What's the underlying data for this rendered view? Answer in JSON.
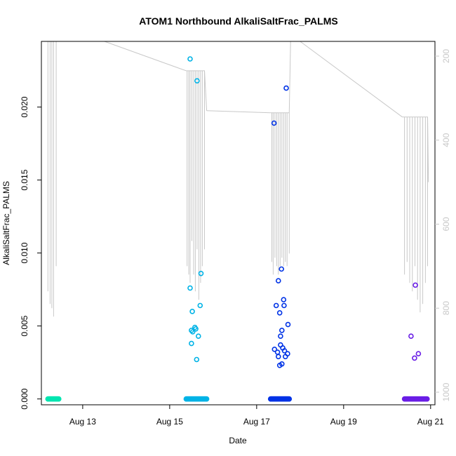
{
  "chart_data": {
    "type": "scatter",
    "title": "ATOM1 Northbound AlkaliSaltFrac_PALMS",
    "xlabel": "Date",
    "ylabel": "AlkaliSaltFrac_PALMS",
    "x_unit": "day of August 2016",
    "xlim": [
      12.05,
      21.1
    ],
    "ylim": [
      -0.0004,
      0.0245
    ],
    "x_ticks": [
      {
        "value": 13,
        "label": "Aug 13"
      },
      {
        "value": 15,
        "label": "Aug 15"
      },
      {
        "value": 17,
        "label": "Aug 17"
      },
      {
        "value": 19,
        "label": "Aug 19"
      },
      {
        "value": 21,
        "label": "Aug 21"
      }
    ],
    "y_ticks": [
      {
        "value": 0.0,
        "label": "0.000"
      },
      {
        "value": 0.005,
        "label": "0.005"
      },
      {
        "value": 0.01,
        "label": "0.010"
      },
      {
        "value": 0.015,
        "label": "0.015"
      },
      {
        "value": 0.02,
        "label": "0.020"
      }
    ],
    "right_axis": {
      "label": "",
      "color": "#c8c8c8",
      "reversed": true,
      "lim": [
        1030,
        165
      ],
      "ticks": [
        {
          "value": 200,
          "label": "200"
        },
        {
          "value": 400,
          "label": "400"
        },
        {
          "value": 600,
          "label": "600"
        },
        {
          "value": 800,
          "label": "800"
        },
        {
          "value": 1000,
          "label": "1000"
        }
      ]
    },
    "grid": false,
    "legend": "none",
    "series": [
      {
        "color": "#00e5b0",
        "x_range": [
          12.2,
          12.45
        ],
        "zero_count": 40,
        "points": []
      },
      {
        "color": "#00b3e6",
        "x_range": [
          15.38,
          15.85
        ],
        "zero_count": 70,
        "points": [
          {
            "x": 15.47,
            "y": 0.0233
          },
          {
            "x": 15.63,
            "y": 0.0218
          },
          {
            "x": 15.72,
            "y": 0.0086
          },
          {
            "x": 15.47,
            "y": 0.0076
          },
          {
            "x": 15.52,
            "y": 0.006
          },
          {
            "x": 15.7,
            "y": 0.0064
          },
          {
            "x": 15.58,
            "y": 0.0049
          },
          {
            "x": 15.6,
            "y": 0.0048
          },
          {
            "x": 15.5,
            "y": 0.0047
          },
          {
            "x": 15.53,
            "y": 0.0046
          },
          {
            "x": 15.66,
            "y": 0.0043
          },
          {
            "x": 15.5,
            "y": 0.0038
          },
          {
            "x": 15.62,
            "y": 0.0027
          }
        ]
      },
      {
        "color": "#0033e6",
        "x_range": [
          17.32,
          17.75
        ],
        "zero_count": 70,
        "points": [
          {
            "x": 17.68,
            "y": 0.0213
          },
          {
            "x": 17.4,
            "y": 0.0189
          },
          {
            "x": 17.57,
            "y": 0.0089
          },
          {
            "x": 17.5,
            "y": 0.0081
          },
          {
            "x": 17.62,
            "y": 0.0068
          },
          {
            "x": 17.45,
            "y": 0.0064
          },
          {
            "x": 17.63,
            "y": 0.0064
          },
          {
            "x": 17.53,
            "y": 0.0059
          },
          {
            "x": 17.72,
            "y": 0.0051
          },
          {
            "x": 17.58,
            "y": 0.0047
          },
          {
            "x": 17.55,
            "y": 0.0043
          },
          {
            "x": 17.55,
            "y": 0.0037
          },
          {
            "x": 17.6,
            "y": 0.0035
          },
          {
            "x": 17.41,
            "y": 0.0034
          },
          {
            "x": 17.64,
            "y": 0.0033
          },
          {
            "x": 17.48,
            "y": 0.0032
          },
          {
            "x": 17.71,
            "y": 0.0031
          },
          {
            "x": 17.5,
            "y": 0.0029
          },
          {
            "x": 17.66,
            "y": 0.0029
          },
          {
            "x": 17.58,
            "y": 0.0024
          },
          {
            "x": 17.53,
            "y": 0.0023
          }
        ]
      },
      {
        "color": "#6a1ee6",
        "x_range": [
          20.4,
          20.92
        ],
        "zero_count": 60,
        "points": [
          {
            "x": 20.65,
            "y": 0.0078
          },
          {
            "x": 20.55,
            "y": 0.0043
          },
          {
            "x": 20.72,
            "y": 0.0031
          },
          {
            "x": 20.63,
            "y": 0.0028
          }
        ]
      }
    ],
    "secondary_series": {
      "type": "line",
      "color": "#c8c8c8",
      "axis": "right",
      "segments": [
        {
          "x0": 12.18,
          "x1": 12.45,
          "start": 165,
          "oscillations": [
            [
              12.2,
              760
            ],
            [
              12.25,
              790
            ],
            [
              12.29,
              800
            ],
            [
              12.33,
              820
            ],
            [
              12.39,
              700
            ]
          ],
          "end": 165
        },
        {
          "x0": 13.5,
          "x1": 15.38,
          "start": 165,
          "oscillations": [],
          "end": 235
        },
        {
          "x0": 15.38,
          "x1": 15.85,
          "start": 235,
          "oscillations": [
            [
              15.4,
              700
            ],
            [
              15.44,
              720
            ],
            [
              15.47,
              740
            ],
            [
              15.51,
              640
            ],
            [
              15.55,
              720
            ],
            [
              15.59,
              760
            ],
            [
              15.63,
              660
            ],
            [
              15.67,
              780
            ],
            [
              15.71,
              740
            ],
            [
              15.75,
              700
            ],
            [
              15.8,
              660
            ]
          ],
          "end": 330
        },
        {
          "x0": 15.85,
          "x1": 17.32,
          "start": 330,
          "oscillations": [],
          "end": 335
        },
        {
          "x0": 17.32,
          "x1": 17.78,
          "start": 335,
          "oscillations": [
            [
              17.35,
              690
            ],
            [
              17.38,
              720
            ],
            [
              17.42,
              680
            ],
            [
              17.46,
              700
            ],
            [
              17.5,
              720
            ],
            [
              17.54,
              700
            ],
            [
              17.58,
              680
            ],
            [
              17.62,
              700
            ],
            [
              17.66,
              690
            ],
            [
              17.7,
              700
            ],
            [
              17.75,
              670
            ]
          ],
          "end": 165
        },
        {
          "x0": 18.0,
          "x1": 20.35,
          "start": 165,
          "oscillations": [],
          "end": 345
        },
        {
          "x0": 20.35,
          "x1": 20.95,
          "start": 345,
          "oscillations": [
            [
              20.4,
              720
            ],
            [
              20.46,
              690
            ],
            [
              20.52,
              740
            ],
            [
              20.58,
              760
            ],
            [
              20.64,
              700
            ],
            [
              20.7,
              780
            ],
            [
              20.76,
              810
            ],
            [
              20.82,
              790
            ],
            [
              20.88,
              740
            ],
            [
              20.93,
              700
            ]
          ],
          "end": 500
        }
      ]
    }
  }
}
